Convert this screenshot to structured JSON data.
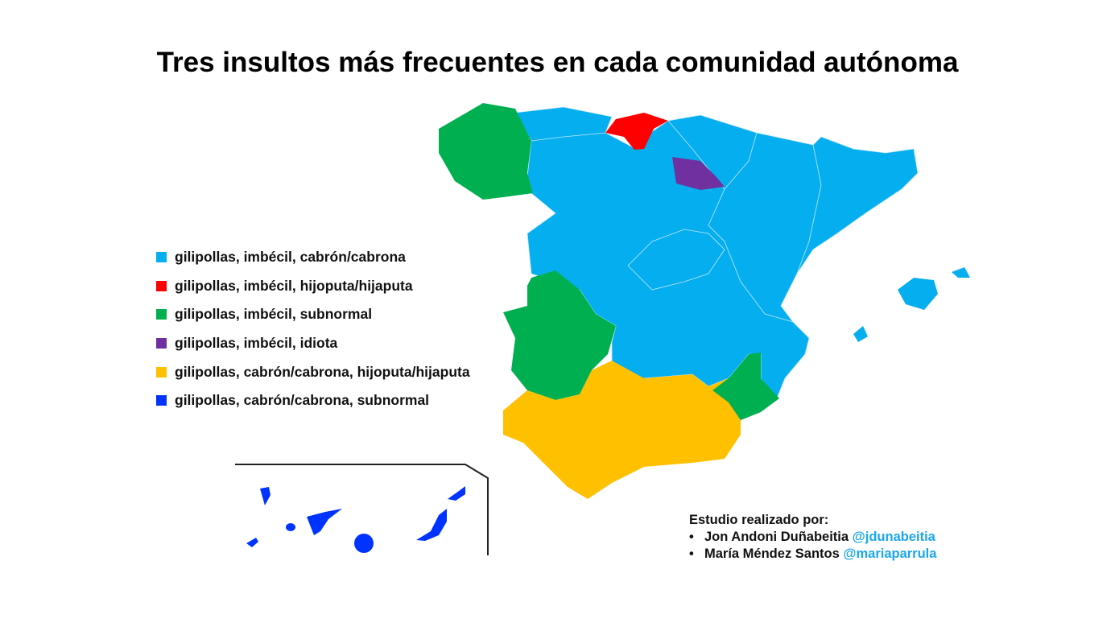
{
  "title": "Tres insultos más frecuentes en cada comunidad autónoma",
  "colors": {
    "light_blue": "#05AEEF",
    "red": "#FF0000",
    "green": "#00B050",
    "purple": "#7030A0",
    "yellow": "#FFC000",
    "blue": "#0033FF"
  },
  "legend": [
    {
      "label": "gilipollas, imbécil, cabrón/cabrona",
      "color": "#05AEEF"
    },
    {
      "label": "gilipollas, imbécil, hijoputa/hijaputa",
      "color": "#FF0000"
    },
    {
      "label": "gilipollas, imbécil, subnormal",
      "color": "#00B050"
    },
    {
      "label": "gilipollas, imbécil, idiota",
      "color": "#7030A0"
    },
    {
      "label": "gilipollas, cabrón/cabrona, hijoputa/hijaputa",
      "color": "#FFC000"
    },
    {
      "label": "gilipollas, cabrón/cabrona, subnormal",
      "color": "#0033FF"
    }
  ],
  "credits": {
    "heading": "Estudio realizado por:",
    "authors": [
      {
        "name": "Jon Andoni Duñabeitia",
        "handle": "@jdunabeitia"
      },
      {
        "name": "María Méndez Santos",
        "handle": "@mariaparrula"
      }
    ]
  }
}
